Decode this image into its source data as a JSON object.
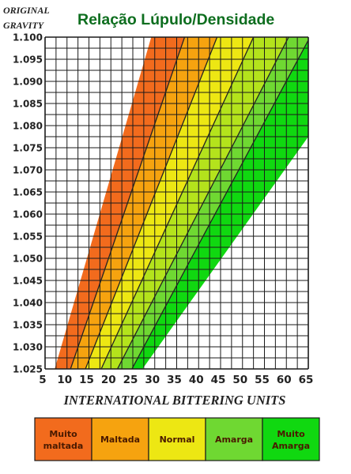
{
  "header": {
    "og_line1": "ORIGINAL",
    "og_line2": "GRAVITY",
    "title": "Relação Lúpulo/Densidade"
  },
  "chart_data": {
    "type": "area",
    "title": "Relação Lúpulo/Densidade",
    "ylabel": "ORIGINAL GRAVITY",
    "xlabel": "INTERNATIONAL BITTERING UNITS",
    "xlim": [
      5,
      65
    ],
    "ylim": [
      1.025,
      1.1
    ],
    "x_ticks": [
      "5",
      "10",
      "15",
      "20",
      "25",
      "30",
      "35",
      "40",
      "45",
      "50",
      "55",
      "60",
      "65"
    ],
    "y_ticks": [
      "1.025",
      "1.030",
      "1.035",
      "1.040",
      "1.045",
      "1.050",
      "1.055",
      "1.060",
      "1.065",
      "1.070",
      "1.075",
      "1.080",
      "1.085",
      "1.090",
      "1.095",
      "1.100"
    ],
    "grid": true,
    "legend_position": "bottom",
    "band_boundaries": [
      [
        [
          7.2,
          1.025
        ],
        [
          29.2,
          1.1
        ]
      ],
      [
        [
          10.8,
          1.025
        ],
        [
          36.8,
          1.1
        ]
      ],
      [
        [
          14.2,
          1.025
        ],
        [
          44.2,
          1.1
        ]
      ],
      [
        [
          17.8,
          1.025
        ],
        [
          52.5,
          1.1
        ]
      ],
      [
        [
          21.5,
          1.025
        ],
        [
          60.5,
          1.1
        ]
      ],
      [
        [
          24.8,
          1.025
        ],
        [
          65,
          1.0993
        ]
      ],
      [
        [
          27.2,
          1.025
        ],
        [
          65,
          1.0775
        ]
      ]
    ],
    "bands": [
      {
        "name": "Muito maltada",
        "label_line1": "Muito",
        "label_line2": "maltada",
        "color": "#f26b1d"
      },
      {
        "name": "Maltada",
        "label_line1": "Maltada",
        "label_line2": "",
        "color": "#f6a30f"
      },
      {
        "name": "Normal",
        "label_line1": "Normal",
        "label_line2": "",
        "color": "#ede713"
      },
      {
        "name": "Amarga",
        "label_line1": "Amarga",
        "label_line2": "",
        "color": "#6fd832"
      },
      {
        "name": "Muito Amarga",
        "label_line1": "Muito",
        "label_line2": "Amarga",
        "color": "#10d810"
      }
    ],
    "band_colors_between_lines": [
      "#f26b1d",
      "#f6a30f",
      "#ede713",
      "#b4e31c",
      "#6fd832",
      "#10d810"
    ],
    "colors": {
      "grid": "#1a1a1a",
      "band_line": "#222222",
      "legend_label": "#4a1a00"
    }
  }
}
